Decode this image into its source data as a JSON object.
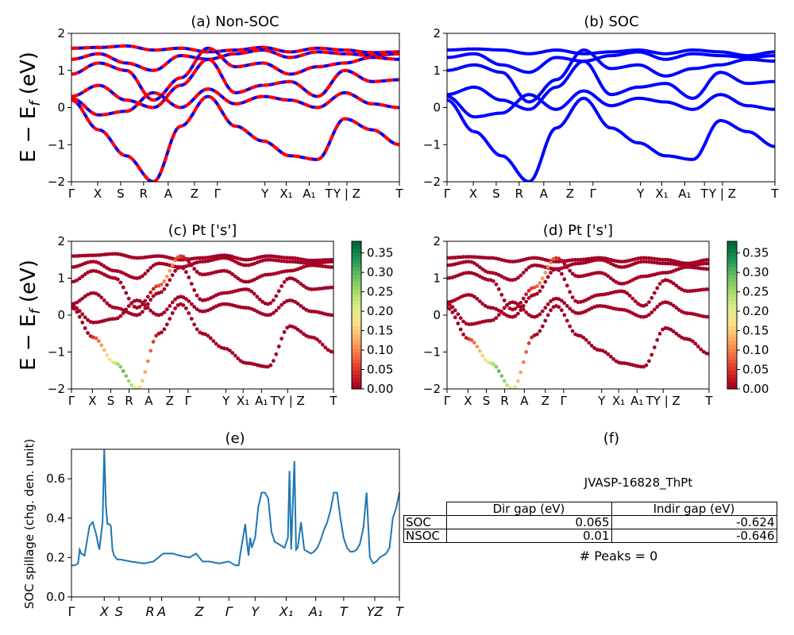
{
  "band_ticks": [
    "Γ",
    "X",
    "S",
    "R",
    "A",
    "Z",
    "Γ",
    "Y",
    "X₁",
    "A₁",
    "T",
    "Y | Z",
    "T"
  ],
  "dos_ticks": [
    "Γ",
    "X",
    "S",
    "R",
    "A",
    "Z",
    "Γ",
    "Y",
    "X₁",
    "A₁",
    "TY | Z",
    "T"
  ],
  "spill_ticks": [
    "Γ",
    "X",
    "S",
    "R",
    "A",
    "Z",
    "Γ",
    "Y",
    "X₁",
    "A₁",
    "T",
    "YZ",
    "T"
  ],
  "ylabel": "E − E_f (eV)",
  "yticks": [
    "−2",
    "−1",
    "0",
    "1",
    "2"
  ],
  "cbar_ticks": [
    "0.00",
    "0.05",
    "0.10",
    "0.15",
    "0.20",
    "0.25",
    "0.30",
    "0.35"
  ],
  "colors": {
    "nonsoc_a": "#ff0000",
    "nonsoc_b": "#0000ff",
    "soc": "#0000ff",
    "spill": "#1f77b4",
    "weight_low": "#a50026",
    "weight_high": "#006837"
  },
  "panels": {
    "a": {
      "title": "(a) Non-SOC"
    },
    "b": {
      "title": "(b) SOC"
    },
    "c": {
      "title": "(c)  Pt ['s']"
    },
    "d": {
      "title": "(d) Pt ['s']"
    },
    "e": {
      "title": "(e)",
      "ylabel": "SOC spillage (chg. den. unit)",
      "yticks": [
        "0.0",
        "0.2",
        "0.4",
        "0.6"
      ]
    },
    "f": {
      "title": "(f)",
      "material": "JVASP-16828_ThPt",
      "peaks": "# Peaks = 0",
      "table": {
        "header": [
          "Dir gap (eV)",
          "Indir gap (eV)"
        ],
        "rows": [
          {
            "label": "SOC",
            "dir": "0.065",
            "indir": "-0.624"
          },
          {
            "label": "NSOC",
            "dir": "0.01",
            "indir": "-0.646"
          }
        ]
      }
    }
  },
  "chart_data": [
    {
      "type": "line",
      "title": "(a) Non-SOC",
      "ylabel": "E − E_f (eV)",
      "ylim": [
        -2,
        2
      ],
      "x_ticks": [
        "Γ",
        "X",
        "S",
        "R",
        "A",
        "Z",
        "Γ",
        "Y",
        "X₁",
        "A₁",
        "T",
        "Y | Z",
        "T"
      ],
      "series": [
        {
          "values": [
            1.6,
            1.62,
            1.66,
            1.55,
            1.6,
            1.5,
            1.55,
            1.62,
            1.5,
            1.6,
            1.55,
            1.48,
            1.5
          ]
        },
        {
          "values": [
            1.3,
            1.45,
            1.2,
            1.0,
            1.4,
            1.3,
            1.45,
            1.55,
            1.35,
            1.5,
            1.45,
            1.4,
            1.45
          ]
        },
        {
          "values": [
            0.9,
            1.2,
            1.0,
            0.2,
            0.8,
            1.6,
            1.1,
            1.2,
            0.9,
            1.1,
            1.2,
            1.35,
            1.3
          ]
        },
        {
          "values": [
            0.3,
            0.6,
            0.2,
            0.0,
            0.6,
            1.3,
            0.4,
            0.6,
            0.7,
            0.3,
            1.0,
            0.7,
            0.75
          ]
        },
        {
          "values": [
            0.25,
            -0.2,
            -0.1,
            0.4,
            0.0,
            0.5,
            0.1,
            0.3,
            0.2,
            0.0,
            0.4,
            0.1,
            0.0
          ]
        },
        {
          "values": [
            0.2,
            -0.6,
            -1.3,
            -2.0,
            -0.5,
            0.3,
            -0.5,
            -0.9,
            -1.3,
            -1.4,
            -0.3,
            -0.6,
            -1.0
          ]
        }
      ]
    },
    {
      "type": "line",
      "title": "(b) SOC",
      "ylabel": "E − E_f (eV)",
      "ylim": [
        -2,
        2
      ],
      "x_ticks": [
        "Γ",
        "X",
        "S",
        "R",
        "A",
        "Z",
        "Γ",
        "Y",
        "X₁",
        "A₁",
        "T",
        "Y | Z",
        "T"
      ],
      "series": [
        {
          "values": [
            1.55,
            1.58,
            1.55,
            1.45,
            1.55,
            1.45,
            1.5,
            1.55,
            1.45,
            1.55,
            1.5,
            1.4,
            1.5
          ]
        },
        {
          "values": [
            1.35,
            1.45,
            1.15,
            0.95,
            1.35,
            1.25,
            1.4,
            1.5,
            1.3,
            1.45,
            1.4,
            1.35,
            1.4
          ]
        },
        {
          "values": [
            1.0,
            1.15,
            0.95,
            0.15,
            0.75,
            1.55,
            1.05,
            1.15,
            0.85,
            1.05,
            1.15,
            1.3,
            1.25
          ]
        },
        {
          "values": [
            0.35,
            0.55,
            0.2,
            -0.05,
            0.55,
            1.25,
            0.35,
            0.55,
            0.65,
            0.25,
            0.95,
            0.65,
            0.7
          ]
        },
        {
          "values": [
            0.3,
            -0.25,
            -0.15,
            0.35,
            -0.05,
            0.45,
            0.05,
            0.25,
            0.15,
            -0.05,
            0.35,
            0.05,
            -0.05
          ]
        },
        {
          "values": [
            0.2,
            -0.65,
            -1.3,
            -2.0,
            -0.55,
            0.25,
            -0.55,
            -0.95,
            -1.3,
            -1.4,
            -0.35,
            -0.65,
            -1.05
          ]
        }
      ]
    },
    {
      "type": "scatter",
      "title": "(c)  Pt ['s']",
      "ylim": [
        -2,
        2
      ],
      "colorbar": [
        0,
        0.38
      ],
      "x_ticks": [
        "Γ",
        "X",
        "S",
        "R",
        "A",
        "Z",
        "Γ",
        "Y",
        "X₁",
        "A₁",
        "TY | Z",
        "T"
      ]
    },
    {
      "type": "scatter",
      "title": "(d) Pt ['s']",
      "ylim": [
        -2,
        2
      ],
      "colorbar": [
        0,
        0.38
      ],
      "x_ticks": [
        "Γ",
        "X",
        "S",
        "R",
        "A",
        "Z",
        "Γ",
        "Y",
        "X₁",
        "A₁",
        "TY | Z",
        "T"
      ]
    },
    {
      "type": "line",
      "title": "(e)",
      "ylabel": "SOC spillage (chg. den. unit)",
      "ylim": [
        0,
        0.75
      ],
      "x_ticks": [
        "Γ",
        "X",
        "S",
        "R",
        "A",
        "Z",
        "Γ",
        "Y",
        "X₁",
        "A₁",
        "T",
        "YZ",
        "T"
      ],
      "x": [
        0,
        0.01,
        0.02,
        0.025,
        0.03,
        0.04,
        0.055,
        0.065,
        0.075,
        0.085,
        0.095,
        0.1,
        0.105,
        0.11,
        0.115,
        0.12,
        0.125,
        0.13,
        0.14,
        0.15,
        0.18,
        0.22,
        0.25,
        0.28,
        0.3,
        0.31,
        0.33,
        0.36,
        0.38,
        0.4,
        0.42,
        0.45,
        0.48,
        0.5,
        0.505,
        0.51,
        0.515,
        0.52,
        0.53,
        0.535,
        0.54,
        0.545,
        0.55,
        0.56,
        0.57,
        0.58,
        0.59,
        0.6,
        0.61,
        0.62,
        0.63,
        0.64,
        0.65,
        0.66,
        0.665,
        0.67,
        0.68,
        0.685,
        0.69,
        0.7,
        0.71,
        0.72,
        0.73,
        0.74,
        0.75,
        0.76,
        0.77,
        0.78,
        0.79,
        0.8,
        0.81,
        0.82,
        0.83,
        0.84,
        0.85,
        0.86,
        0.87,
        0.88,
        0.89,
        0.9,
        0.91,
        0.92,
        0.93,
        0.94,
        0.95,
        0.96,
        0.97,
        0.98,
        0.99,
        1.0
      ],
      "values": [
        0.16,
        0.16,
        0.17,
        0.24,
        0.22,
        0.21,
        0.36,
        0.38,
        0.32,
        0.24,
        0.38,
        0.75,
        0.46,
        0.37,
        0.37,
        0.36,
        0.24,
        0.21,
        0.19,
        0.19,
        0.18,
        0.17,
        0.18,
        0.22,
        0.22,
        0.22,
        0.21,
        0.2,
        0.22,
        0.18,
        0.18,
        0.17,
        0.18,
        0.16,
        0.16,
        0.16,
        0.22,
        0.27,
        0.37,
        0.28,
        0.21,
        0.3,
        0.25,
        0.3,
        0.46,
        0.53,
        0.53,
        0.5,
        0.33,
        0.28,
        0.27,
        0.26,
        0.25,
        0.3,
        0.64,
        0.24,
        0.69,
        0.24,
        0.25,
        0.38,
        0.24,
        0.23,
        0.22,
        0.23,
        0.25,
        0.29,
        0.34,
        0.38,
        0.44,
        0.53,
        0.53,
        0.4,
        0.3,
        0.25,
        0.23,
        0.23,
        0.24,
        0.27,
        0.35,
        0.53,
        0.2,
        0.17,
        0.18,
        0.2,
        0.21,
        0.22,
        0.25,
        0.4,
        0.45,
        0.53
      ]
    }
  ]
}
